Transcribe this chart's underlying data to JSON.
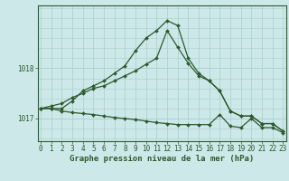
{
  "xlabel": "Graphe pression niveau de la mer (hPa)",
  "background_color": "#cce8e8",
  "plot_bg_color": "#cce8e8",
  "line_color": "#2d5a2d",
  "grid_color": "#aacece",
  "yticks": [
    1017,
    1018
  ],
  "ylim": [
    1016.55,
    1019.25
  ],
  "xlim": [
    -0.3,
    23.3
  ],
  "xticks": [
    0,
    1,
    2,
    3,
    4,
    5,
    6,
    7,
    8,
    9,
    10,
    11,
    12,
    13,
    14,
    15,
    16,
    17,
    18,
    19,
    20,
    21,
    22,
    23
  ],
  "series": [
    [
      1017.2,
      1017.2,
      1017.2,
      1017.35,
      1017.55,
      1017.65,
      1017.75,
      1017.9,
      1018.05,
      1018.35,
      1018.6,
      1018.75,
      1018.95,
      1018.85,
      1018.2,
      1017.9,
      1017.75,
      1017.55,
      1017.15,
      1017.05,
      1017.05,
      1016.9,
      1016.9,
      1016.75
    ],
    [
      1017.2,
      1017.2,
      1017.15,
      1017.12,
      1017.1,
      1017.08,
      1017.05,
      1017.02,
      1017.0,
      1016.98,
      1016.95,
      1016.92,
      1016.9,
      1016.88,
      1016.88,
      1016.88,
      1016.88,
      1017.08,
      1016.85,
      1016.82,
      1017.0,
      1016.82,
      1016.82,
      1016.72
    ],
    [
      1017.2,
      1017.25,
      1017.3,
      1017.42,
      1017.5,
      1017.6,
      1017.65,
      1017.75,
      1017.85,
      1017.95,
      1018.08,
      1018.2,
      1018.75,
      1018.42,
      1018.1,
      1017.85,
      1017.75,
      1017.55,
      1017.15,
      1017.05,
      1017.05,
      1016.9,
      1016.9,
      1016.75
    ]
  ],
  "marker": "D",
  "markersize": 2.0,
  "linewidth": 0.9,
  "tick_fontsize": 5.5,
  "xlabel_fontsize": 6.5,
  "tick_color": "#2d5a2d",
  "xlabel_color": "#2d5a2d"
}
